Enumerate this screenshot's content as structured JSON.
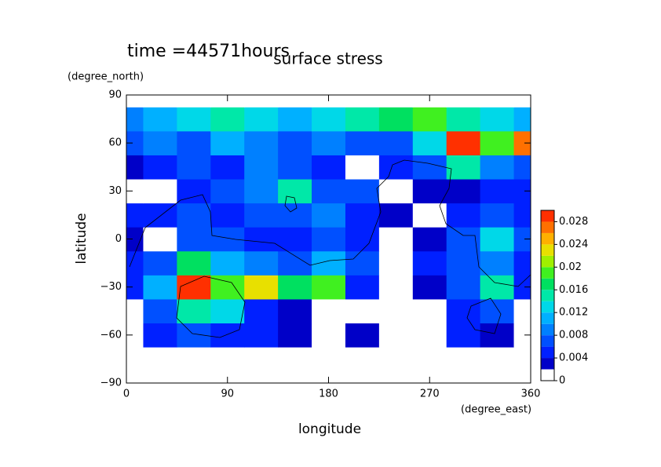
{
  "chart_data": {
    "type": "heatmap",
    "title": "time =44571hours",
    "subtitle": "surface stress",
    "x_label": "longitude",
    "x_unit": "(degree_east)",
    "y_label": "latitude",
    "y_unit": "(degree_north)",
    "xlim": [
      0,
      360
    ],
    "ylim": [
      -90,
      90
    ],
    "xticks": [
      0,
      90,
      180,
      270,
      360
    ],
    "yticks": [
      {
        "value": -90,
        "label": "−90"
      },
      {
        "value": -60,
        "label": "−60"
      },
      {
        "value": -30,
        "label": "−30"
      },
      0,
      30,
      60,
      90
    ],
    "x": [
      0,
      30,
      60,
      90,
      120,
      150,
      180,
      210,
      240,
      270,
      300,
      330,
      360
    ],
    "y": [
      -90,
      -75,
      -60,
      -45,
      -30,
      -15,
      0,
      15,
      30,
      45,
      60,
      75,
      90
    ],
    "z": [
      [
        0,
        0,
        0,
        0,
        0,
        0,
        0,
        0,
        0,
        0,
        0,
        0,
        0
      ],
      [
        0,
        0,
        0,
        0,
        0,
        0,
        0,
        0,
        0,
        0,
        0,
        0,
        0
      ],
      [
        0,
        0.004,
        0.006,
        0.004,
        0.004,
        0.002,
        0,
        0.002,
        0,
        0,
        0.004,
        0.002,
        0
      ],
      [
        0,
        0.006,
        0.014,
        0.012,
        0.004,
        0.002,
        0,
        0,
        0,
        0,
        0.004,
        0.006,
        0
      ],
      [
        0.004,
        0.01,
        0.028,
        0.018,
        0.022,
        0.016,
        0.018,
        0.004,
        0,
        0.002,
        0.006,
        0.014,
        0.004
      ],
      [
        0.004,
        0.006,
        0.016,
        0.01,
        0.008,
        0.006,
        0.01,
        0.006,
        0,
        0.004,
        0.006,
        0.008,
        0.004
      ],
      [
        0.002,
        0,
        0.006,
        0.006,
        0.004,
        0.004,
        0.006,
        0.004,
        0,
        0.002,
        0.006,
        0.012,
        0.006
      ],
      [
        0.004,
        0.004,
        0.006,
        0.004,
        0.006,
        0.006,
        0.008,
        0.004,
        0.002,
        0,
        0.004,
        0.006,
        0.004
      ],
      [
        0,
        0,
        0.004,
        0.006,
        0.008,
        0.014,
        0.006,
        0.006,
        0,
        0.002,
        0.002,
        0.004,
        0.004
      ],
      [
        0.002,
        0.004,
        0.006,
        0.004,
        0.008,
        0.006,
        0.004,
        0,
        0.004,
        0.006,
        0.014,
        0.008,
        0.006
      ],
      [
        0.006,
        0.008,
        0.006,
        0.01,
        0.008,
        0.006,
        0.008,
        0.006,
        0.006,
        0.012,
        0.028,
        0.018,
        0.026
      ],
      [
        0.008,
        0.01,
        0.012,
        0.014,
        0.012,
        0.01,
        0.012,
        0.014,
        0.016,
        0.018,
        0.014,
        0.012,
        0.01
      ],
      [
        0,
        0,
        0,
        0,
        0,
        0,
        0,
        0,
        0,
        0,
        0,
        0,
        0
      ]
    ],
    "clim": [
      0,
      0.03
    ],
    "cticks": [
      0,
      0.004,
      0.008,
      0.012,
      0.016,
      0.02,
      0.024,
      0.028
    ],
    "colors": [
      "#ffffff",
      "#0000c8",
      "#0020ff",
      "#0050ff",
      "#0080ff",
      "#00b0ff",
      "#00d8e8",
      "#00e8a8",
      "#00e060",
      "#40f020",
      "#a0f000",
      "#e8e000",
      "#ffb000",
      "#ff7000",
      "#ff3000"
    ]
  }
}
